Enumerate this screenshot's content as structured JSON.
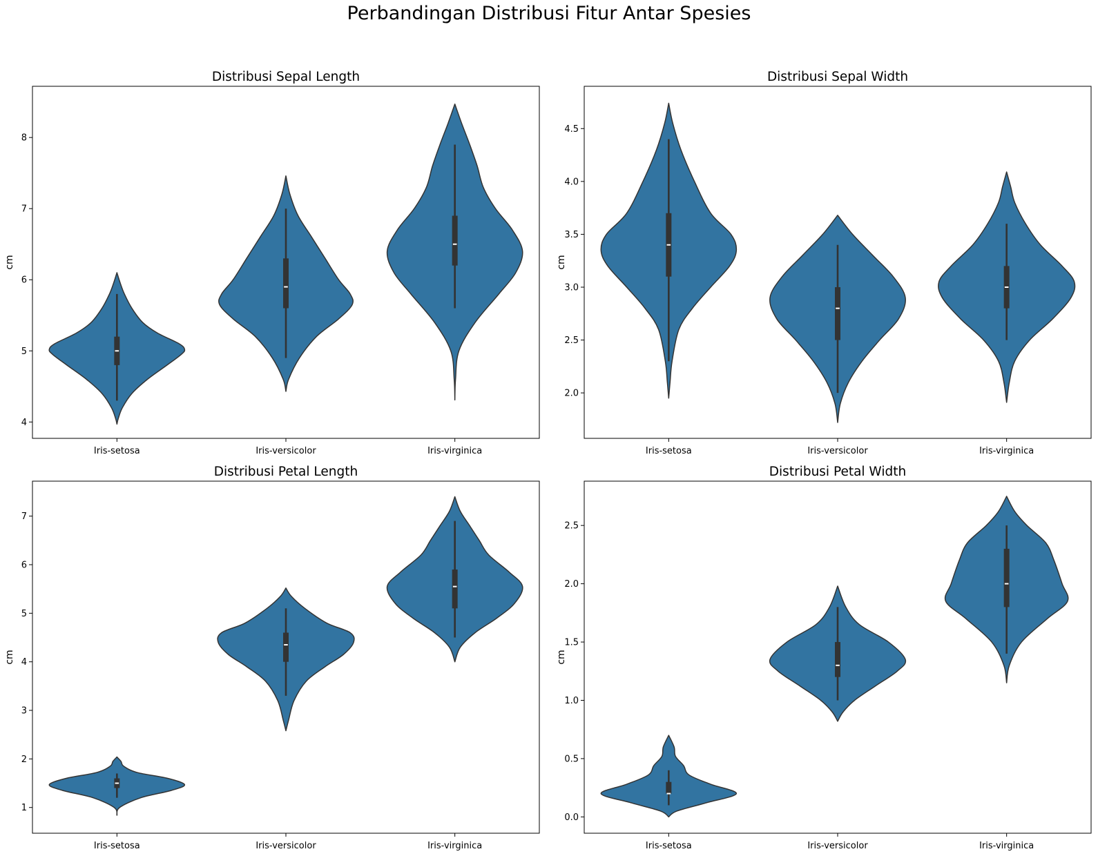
{
  "figure": {
    "suptitle": "Perbandingan Distribusi Fitur Antar Spesies",
    "violin_color": "#3274a1",
    "edge_color": "#333333"
  },
  "chart_data": [
    {
      "type": "violin",
      "title": "Distribusi Sepal Length",
      "xlabel": "",
      "ylabel": "cm",
      "ylim": [
        3.77,
        8.72
      ],
      "yticks": [
        4,
        5,
        6,
        7,
        8
      ],
      "tick_decimals": 0,
      "categories": [
        "Iris-setosa",
        "Iris-versicolor",
        "Iris-virginica"
      ],
      "violins": [
        {
          "category": "Iris-setosa",
          "q1": 4.8,
          "median": 5.0,
          "q3": 5.2,
          "whisker_low": 4.3,
          "whisker_high": 5.8,
          "density": [
            [
              3.97,
              0.0
            ],
            [
              4.05,
              0.02
            ],
            [
              4.2,
              0.08
            ],
            [
              4.4,
              0.22
            ],
            [
              4.6,
              0.45
            ],
            [
              4.8,
              0.74
            ],
            [
              4.95,
              0.95
            ],
            [
              5.02,
              1.0
            ],
            [
              5.1,
              0.92
            ],
            [
              5.25,
              0.6
            ],
            [
              5.4,
              0.38
            ],
            [
              5.6,
              0.22
            ],
            [
              5.8,
              0.11
            ],
            [
              5.95,
              0.05
            ],
            [
              6.1,
              0.0
            ]
          ]
        },
        {
          "category": "Iris-versicolor",
          "q1": 5.6,
          "median": 5.9,
          "q3": 6.3,
          "whisker_low": 4.9,
          "whisker_high": 7.0,
          "density": [
            [
              4.43,
              0.0
            ],
            [
              4.6,
              0.04
            ],
            [
              4.9,
              0.2
            ],
            [
              5.2,
              0.45
            ],
            [
              5.45,
              0.78
            ],
            [
              5.65,
              0.98
            ],
            [
              5.8,
              0.95
            ],
            [
              6.0,
              0.78
            ],
            [
              6.3,
              0.58
            ],
            [
              6.6,
              0.38
            ],
            [
              6.9,
              0.18
            ],
            [
              7.2,
              0.06
            ],
            [
              7.46,
              0.0
            ]
          ]
        },
        {
          "category": "Iris-virginica",
          "q1": 6.2,
          "median": 6.5,
          "q3": 6.9,
          "whisker_low": 5.6,
          "whisker_high": 7.9,
          "density": [
            [
              4.31,
              0.0
            ],
            [
              4.6,
              0.01
            ],
            [
              5.0,
              0.06
            ],
            [
              5.4,
              0.3
            ],
            [
              5.8,
              0.65
            ],
            [
              6.1,
              0.9
            ],
            [
              6.4,
              1.0
            ],
            [
              6.7,
              0.85
            ],
            [
              7.0,
              0.6
            ],
            [
              7.3,
              0.42
            ],
            [
              7.6,
              0.33
            ],
            [
              7.9,
              0.22
            ],
            [
              8.2,
              0.1
            ],
            [
              8.47,
              0.0
            ]
          ]
        }
      ]
    },
    {
      "type": "violin",
      "title": "Distribusi Sepal Width",
      "xlabel": "",
      "ylabel": "cm",
      "ylim": [
        1.57,
        4.9
      ],
      "yticks": [
        2.0,
        2.5,
        3.0,
        3.5,
        4.0,
        4.5
      ],
      "tick_decimals": 1,
      "categories": [
        "Iris-setosa",
        "Iris-versicolor",
        "Iris-virginica"
      ],
      "violins": [
        {
          "category": "Iris-setosa",
          "q1": 3.1,
          "median": 3.4,
          "q3": 3.7,
          "whisker_low": 2.3,
          "whisker_high": 4.4,
          "density": [
            [
              1.95,
              0.0
            ],
            [
              2.1,
              0.02
            ],
            [
              2.3,
              0.05
            ],
            [
              2.6,
              0.15
            ],
            [
              2.8,
              0.35
            ],
            [
              3.0,
              0.62
            ],
            [
              3.2,
              0.9
            ],
            [
              3.35,
              1.0
            ],
            [
              3.5,
              0.92
            ],
            [
              3.7,
              0.62
            ],
            [
              4.0,
              0.38
            ],
            [
              4.3,
              0.18
            ],
            [
              4.55,
              0.06
            ],
            [
              4.74,
              0.0
            ]
          ]
        },
        {
          "category": "Iris-versicolor",
          "q1": 2.5,
          "median": 2.8,
          "q3": 3.0,
          "whisker_low": 2.0,
          "whisker_high": 3.4,
          "density": [
            [
              1.72,
              0.0
            ],
            [
              1.9,
              0.04
            ],
            [
              2.1,
              0.16
            ],
            [
              2.3,
              0.36
            ],
            [
              2.5,
              0.62
            ],
            [
              2.7,
              0.9
            ],
            [
              2.9,
              1.0
            ],
            [
              3.1,
              0.82
            ],
            [
              3.3,
              0.52
            ],
            [
              3.5,
              0.22
            ],
            [
              3.68,
              0.0
            ]
          ]
        },
        {
          "category": "Iris-virginica",
          "q1": 2.8,
          "median": 3.0,
          "q3": 3.2,
          "whisker_low": 2.5,
          "whisker_high": 3.6,
          "density": [
            [
              1.91,
              0.0
            ],
            [
              2.1,
              0.04
            ],
            [
              2.3,
              0.12
            ],
            [
              2.5,
              0.34
            ],
            [
              2.7,
              0.68
            ],
            [
              2.9,
              0.95
            ],
            [
              3.05,
              1.0
            ],
            [
              3.2,
              0.82
            ],
            [
              3.4,
              0.5
            ],
            [
              3.6,
              0.28
            ],
            [
              3.8,
              0.12
            ],
            [
              3.95,
              0.06
            ],
            [
              4.09,
              0.0
            ]
          ]
        }
      ]
    },
    {
      "type": "violin",
      "title": "Distribusi Petal Length",
      "xlabel": "",
      "ylabel": "cm",
      "ylim": [
        0.47,
        7.72
      ],
      "yticks": [
        1,
        2,
        3,
        4,
        5,
        6,
        7
      ],
      "tick_decimals": 0,
      "categories": [
        "Iris-setosa",
        "Iris-versicolor",
        "Iris-virginica"
      ],
      "violins": [
        {
          "category": "Iris-setosa",
          "q1": 1.4,
          "median": 1.5,
          "q3": 1.6,
          "whisker_low": 1.2,
          "whisker_high": 1.7,
          "density": [
            [
              0.84,
              0.0
            ],
            [
              1.0,
              0.04
            ],
            [
              1.2,
              0.35
            ],
            [
              1.35,
              0.8
            ],
            [
              1.47,
              1.0
            ],
            [
              1.6,
              0.75
            ],
            [
              1.72,
              0.3
            ],
            [
              1.85,
              0.1
            ],
            [
              1.95,
              0.06
            ],
            [
              2.04,
              0.0
            ]
          ]
        },
        {
          "category": "Iris-versicolor",
          "q1": 4.0,
          "median": 4.35,
          "q3": 4.6,
          "whisker_low": 3.3,
          "whisker_high": 5.1,
          "density": [
            [
              2.58,
              0.0
            ],
            [
              2.8,
              0.04
            ],
            [
              3.2,
              0.12
            ],
            [
              3.6,
              0.3
            ],
            [
              3.9,
              0.58
            ],
            [
              4.15,
              0.85
            ],
            [
              4.4,
              1.0
            ],
            [
              4.6,
              0.95
            ],
            [
              4.8,
              0.6
            ],
            [
              5.1,
              0.28
            ],
            [
              5.35,
              0.08
            ],
            [
              5.52,
              0.0
            ]
          ]
        },
        {
          "category": "Iris-virginica",
          "q1": 5.1,
          "median": 5.55,
          "q3": 5.9,
          "whisker_low": 4.5,
          "whisker_high": 6.9,
          "density": [
            [
              4.0,
              0.0
            ],
            [
              4.3,
              0.08
            ],
            [
              4.6,
              0.3
            ],
            [
              4.9,
              0.62
            ],
            [
              5.2,
              0.88
            ],
            [
              5.55,
              1.0
            ],
            [
              5.85,
              0.8
            ],
            [
              6.2,
              0.5
            ],
            [
              6.5,
              0.36
            ],
            [
              6.8,
              0.22
            ],
            [
              7.1,
              0.08
            ],
            [
              7.4,
              0.0
            ]
          ]
        }
      ]
    },
    {
      "type": "violin",
      "title": "Distribusi Petal Width",
      "xlabel": "",
      "ylabel": "cm",
      "ylim": [
        -0.14,
        2.88
      ],
      "yticks": [
        0.0,
        0.5,
        1.0,
        1.5,
        2.0,
        2.5
      ],
      "tick_decimals": 1,
      "categories": [
        "Iris-setosa",
        "Iris-versicolor",
        "Iris-virginica"
      ],
      "violins": [
        {
          "category": "Iris-setosa",
          "q1": 0.2,
          "median": 0.2,
          "q3": 0.3,
          "whisker_low": 0.1,
          "whisker_high": 0.4,
          "density": [
            [
              0.0,
              0.0
            ],
            [
              0.05,
              0.12
            ],
            [
              0.12,
              0.55
            ],
            [
              0.2,
              1.0
            ],
            [
              0.28,
              0.62
            ],
            [
              0.36,
              0.3
            ],
            [
              0.44,
              0.22
            ],
            [
              0.52,
              0.1
            ],
            [
              0.6,
              0.08
            ],
            [
              0.7,
              0.0
            ]
          ]
        },
        {
          "category": "Iris-versicolor",
          "q1": 1.2,
          "median": 1.3,
          "q3": 1.5,
          "whisker_low": 1.0,
          "whisker_high": 1.8,
          "density": [
            [
              0.82,
              0.0
            ],
            [
              0.9,
              0.08
            ],
            [
              1.0,
              0.25
            ],
            [
              1.12,
              0.55
            ],
            [
              1.25,
              0.88
            ],
            [
              1.35,
              1.0
            ],
            [
              1.5,
              0.75
            ],
            [
              1.65,
              0.32
            ],
            [
              1.8,
              0.12
            ],
            [
              1.98,
              0.0
            ]
          ]
        },
        {
          "category": "Iris-virginica",
          "q1": 1.8,
          "median": 2.0,
          "q3": 2.3,
          "whisker_low": 1.4,
          "whisker_high": 2.5,
          "density": [
            [
              1.15,
              0.0
            ],
            [
              1.3,
              0.04
            ],
            [
              1.5,
              0.22
            ],
            [
              1.7,
              0.6
            ],
            [
              1.85,
              0.9
            ],
            [
              2.0,
              0.82
            ],
            [
              2.2,
              0.7
            ],
            [
              2.35,
              0.58
            ],
            [
              2.5,
              0.3
            ],
            [
              2.62,
              0.12
            ],
            [
              2.75,
              0.0
            ]
          ]
        }
      ]
    }
  ]
}
